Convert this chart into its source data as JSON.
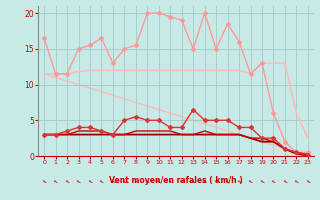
{
  "bg_color": "#c8eae6",
  "grid_color": "#a0cccc",
  "xlabel": "Vent moyen/en rafales ( km/h )",
  "xlabel_color": "#cc0000",
  "tick_color": "#cc0000",
  "xlim": [
    -0.5,
    23.5
  ],
  "ylim": [
    0,
    21
  ],
  "yticks": [
    0,
    5,
    10,
    15,
    20
  ],
  "xticks": [
    0,
    1,
    2,
    3,
    4,
    5,
    6,
    7,
    8,
    9,
    10,
    11,
    12,
    13,
    14,
    15,
    16,
    17,
    18,
    19,
    20,
    21,
    22,
    23
  ],
  "lines": [
    {
      "x": [
        0,
        1,
        2,
        3,
        4,
        5,
        6,
        7,
        8,
        9,
        10,
        11,
        12,
        13,
        14,
        15,
        16,
        17,
        18,
        19,
        20,
        21,
        22,
        23
      ],
      "y": [
        16.5,
        11.5,
        11.5,
        15,
        15.5,
        16.5,
        13,
        15,
        15.5,
        20,
        20,
        19.5,
        19,
        15,
        20,
        15,
        18.5,
        16,
        11.5,
        13,
        6,
        2,
        0.5,
        0.5
      ],
      "color": "#ff9999",
      "lw": 1.0,
      "marker": "D",
      "ms": 2.0,
      "zorder": 3
    },
    {
      "x": [
        0,
        1,
        2,
        3,
        4,
        5,
        6,
        7,
        8,
        9,
        10,
        11,
        12,
        13,
        14,
        15,
        16,
        17,
        18,
        19,
        20,
        21,
        22,
        23
      ],
      "y": [
        11.5,
        11.5,
        11.5,
        11.8,
        12,
        12,
        12,
        12,
        12,
        12,
        12,
        12,
        12,
        12,
        12,
        12,
        12,
        12,
        11.5,
        13,
        13,
        13,
        6,
        2.5
      ],
      "color": "#ffbbbb",
      "lw": 1.2,
      "marker": null,
      "ms": 0,
      "zorder": 2
    },
    {
      "x": [
        0,
        23
      ],
      "y": [
        11.5,
        0
      ],
      "color": "#ffbbbb",
      "lw": 1.0,
      "marker": null,
      "ms": 0,
      "zorder": 1
    },
    {
      "x": [
        0,
        1,
        2,
        3,
        4,
        5,
        6,
        7,
        8,
        9,
        10,
        11,
        12,
        13,
        14,
        15,
        16,
        17,
        18,
        19,
        20,
        21,
        22,
        23
      ],
      "y": [
        3,
        3,
        3.5,
        4,
        4,
        3.5,
        3,
        5,
        5.5,
        5,
        5,
        4,
        4,
        6.5,
        5,
        5,
        5,
        4,
        4,
        2.5,
        2.5,
        1,
        0.5,
        0.2
      ],
      "color": "#dd3333",
      "lw": 1.0,
      "marker": "D",
      "ms": 2.0,
      "zorder": 4
    },
    {
      "x": [
        0,
        1,
        2,
        3,
        4,
        5,
        6,
        7,
        8,
        9,
        10,
        11,
        12,
        13,
        14,
        15,
        16,
        17,
        18,
        19,
        20,
        21,
        22,
        23
      ],
      "y": [
        3,
        3,
        3,
        3.5,
        3.5,
        3.5,
        3,
        3,
        3.5,
        3.5,
        3.5,
        3.5,
        3,
        3,
        3.5,
        3,
        3,
        3,
        2.5,
        2.5,
        2,
        1,
        0.5,
        0.2
      ],
      "color": "#cc0000",
      "lw": 1.0,
      "marker": null,
      "ms": 0,
      "zorder": 3
    },
    {
      "x": [
        0,
        1,
        2,
        3,
        4,
        5,
        6,
        7,
        8,
        9,
        10,
        11,
        12,
        13,
        14,
        15,
        16,
        17,
        18,
        19,
        20,
        21,
        22,
        23
      ],
      "y": [
        3,
        3,
        3,
        3,
        3,
        3,
        3,
        3,
        3,
        3,
        3,
        3,
        3,
        3,
        3,
        3,
        3,
        3,
        2.5,
        2.0,
        2.0,
        1,
        0.3,
        0.1
      ],
      "color": "#990000",
      "lw": 1.3,
      "marker": null,
      "ms": 0,
      "zorder": 2
    }
  ],
  "arrow_color": "#cc0000",
  "arrow_symbol": "←"
}
